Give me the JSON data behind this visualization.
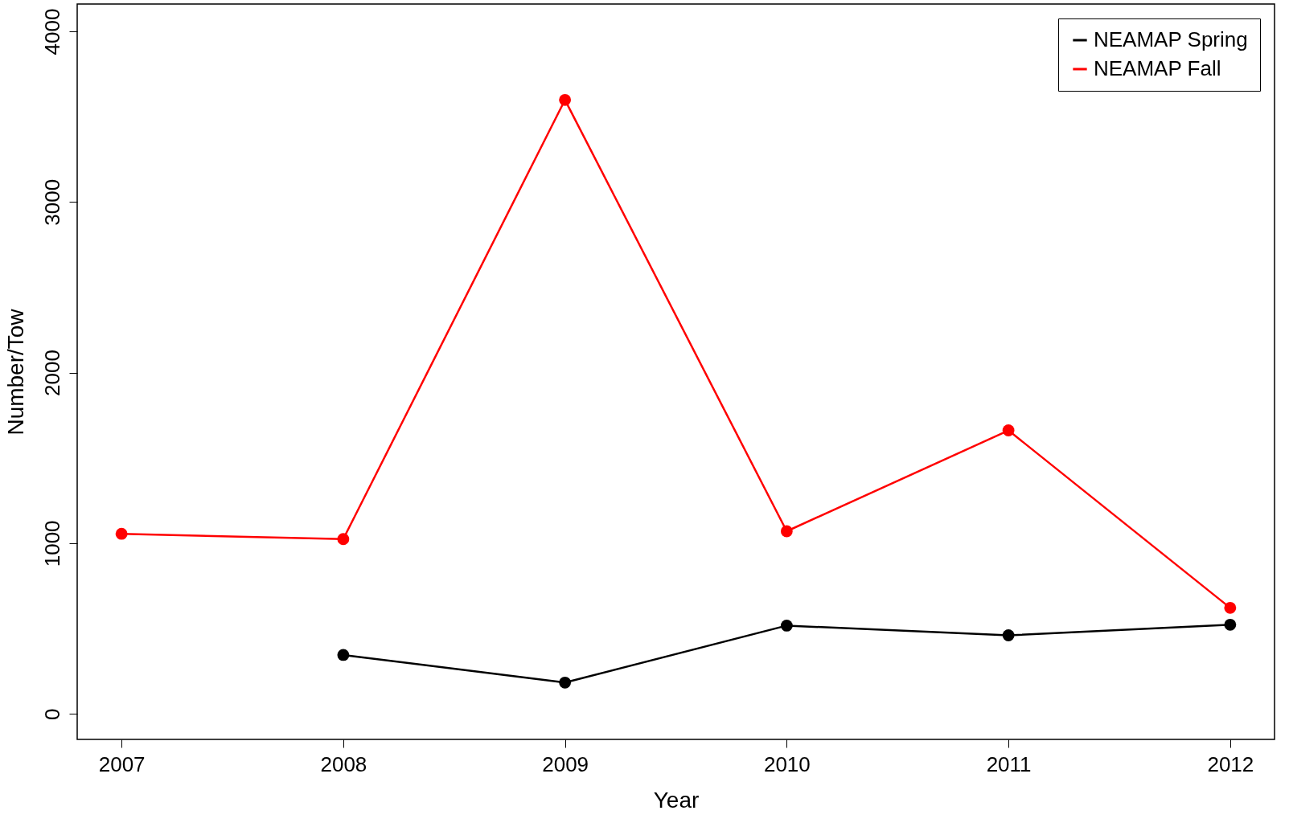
{
  "chart_data": {
    "type": "line",
    "xlabel": "Year",
    "ylabel": "Number/Tow",
    "x": [
      2007,
      2008,
      2009,
      2010,
      2011,
      2012
    ],
    "series": [
      {
        "name": "NEAMAP Spring",
        "color": "#000000",
        "values": [
          null,
          345,
          183,
          517,
          460,
          522
        ]
      },
      {
        "name": "NEAMAP Fall",
        "color": "#ff0000",
        "values": [
          1055,
          1024,
          3598,
          1070,
          1661,
          621
        ]
      }
    ],
    "xlim": [
      2006.8,
      2012.2
    ],
    "ylim": [
      -150,
      4160
    ],
    "xticks": [
      2007,
      2008,
      2009,
      2010,
      2011,
      2012
    ],
    "yticks": [
      0,
      1000,
      2000,
      3000,
      4000
    ],
    "grid": false,
    "legend": "top right",
    "marker": "circle",
    "line_style": "solid"
  }
}
